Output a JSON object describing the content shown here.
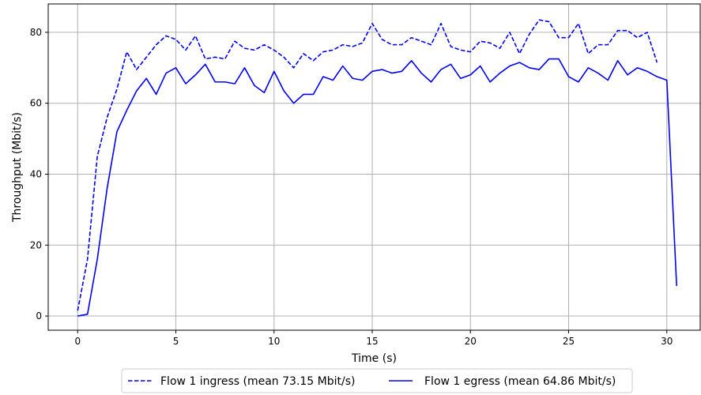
{
  "chart_data": {
    "type": "line",
    "title": "",
    "xlabel": "Time (s)",
    "ylabel": "Throughput (Mbit/s)",
    "xlim": [
      -1.5,
      31.7
    ],
    "ylim": [
      -4,
      88
    ],
    "xticks": [
      0,
      5,
      10,
      15,
      20,
      25,
      30
    ],
    "yticks": [
      0,
      20,
      40,
      60,
      80
    ],
    "grid": true,
    "legend_position": "bottom-center",
    "series": [
      {
        "name": "Flow 1 ingress (mean 73.15 Mbit/s)",
        "color": "#0000ee",
        "style": "dashed",
        "x": [
          0,
          0.5,
          1,
          1.5,
          2,
          2.5,
          3,
          3.5,
          4,
          4.5,
          5,
          5.5,
          6,
          6.5,
          7,
          7.5,
          8,
          8.5,
          9,
          9.5,
          10,
          10.5,
          11,
          11.5,
          12,
          12.5,
          13,
          13.5,
          14,
          14.5,
          15,
          15.5,
          16,
          16.5,
          17,
          17.5,
          18,
          18.5,
          19,
          19.5,
          20,
          20.5,
          21,
          21.5,
          22,
          22.5,
          23,
          23.5,
          24,
          24.5,
          25,
          25.5,
          26,
          26.5,
          27,
          27.5,
          28,
          28.5,
          29,
          29.5
        ],
        "y": [
          1.5,
          16,
          45,
          56,
          64,
          74.5,
          69.5,
          73,
          76.5,
          79,
          78,
          75,
          79,
          72.5,
          73,
          72.5,
          77.5,
          75.5,
          75,
          76.5,
          75,
          73,
          70,
          74,
          72,
          74.5,
          75,
          76.5,
          76,
          77,
          82.5,
          78,
          76.5,
          76.5,
          78.5,
          77.5,
          76.5,
          82.5,
          76,
          75,
          74.5,
          77.5,
          77,
          75.5,
          80,
          74,
          79.5,
          83.5,
          83,
          78.5,
          78.5,
          82.5,
          74,
          76.5,
          76.5,
          80.5,
          80.5,
          78.5,
          80,
          71.5
        ]
      },
      {
        "name": "Flow 1 egress (mean 64.86 Mbit/s)",
        "color": "#0000ee",
        "style": "solid",
        "x": [
          0,
          0.5,
          1,
          1.5,
          2,
          2.5,
          3,
          3.5,
          4,
          4.5,
          5,
          5.5,
          6,
          6.5,
          7,
          7.5,
          8,
          8.5,
          9,
          9.5,
          10,
          10.5,
          11,
          11.5,
          12,
          12.5,
          13,
          13.5,
          14,
          14.5,
          15,
          15.5,
          16,
          16.5,
          17,
          17.5,
          18,
          18.5,
          19,
          19.5,
          20,
          20.5,
          21,
          21.5,
          22,
          22.5,
          23,
          23.5,
          24,
          24.5,
          25,
          25.5,
          26,
          26.5,
          27,
          27.5,
          28,
          28.5,
          29,
          29.5,
          30,
          30.5
        ],
        "y": [
          0,
          0.5,
          16,
          36,
          52,
          58,
          63.5,
          67,
          62.5,
          68.5,
          70,
          65.5,
          68,
          71,
          66,
          66,
          65.5,
          70,
          65,
          63,
          69,
          63.5,
          60,
          62.5,
          62.5,
          67.5,
          66.5,
          70.5,
          67,
          66.5,
          69,
          69.5,
          68.5,
          69,
          72,
          68.5,
          66,
          69.5,
          71,
          67,
          68,
          70.5,
          66,
          68.5,
          70.5,
          71.5,
          70,
          69.5,
          72.5,
          72.5,
          67.5,
          66,
          70,
          68.5,
          66.5,
          72,
          68,
          70,
          69,
          67.5,
          66.5,
          8.5
        ]
      }
    ]
  }
}
